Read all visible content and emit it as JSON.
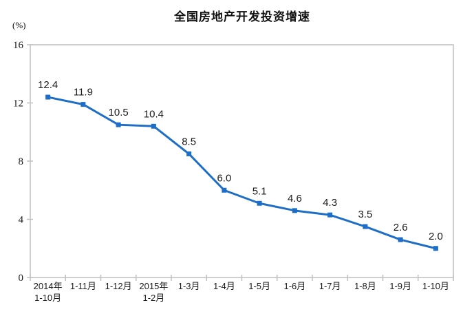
{
  "title": "全国房地产开发投资增速",
  "unit_label": "(%)",
  "colors": {
    "line": "#1e6ec8",
    "marker": "#1e6ec8",
    "axis": "#bfbfbf",
    "text": "#1a1a1a",
    "background": "#ffffff"
  },
  "chart_data": {
    "type": "line",
    "title": "全国房地产开发投资增速",
    "xlabel": "",
    "ylabel": "(%)",
    "categories": [
      "2014年\n1-10月",
      "1-11月",
      "1-12月",
      "2015年\n1-2月",
      "1-3月",
      "1-4月",
      "1-5月",
      "1-6月",
      "1-7月",
      "1-8月",
      "1-9月",
      "1-10月"
    ],
    "values": [
      12.4,
      11.9,
      10.5,
      10.4,
      8.5,
      6.0,
      5.1,
      4.6,
      4.3,
      3.5,
      2.6,
      2.0
    ],
    "data_labels": [
      "12.4",
      "11.9",
      "10.5",
      "10.4",
      "8.5",
      "6.0",
      "5.1",
      "4.6",
      "4.3",
      "3.5",
      "2.6",
      "2.0"
    ],
    "ylim": [
      0,
      16
    ],
    "yticks": [
      0,
      4,
      8,
      12,
      16
    ],
    "grid": false,
    "legend": "none",
    "marker": "square",
    "data_label_position": "above"
  }
}
